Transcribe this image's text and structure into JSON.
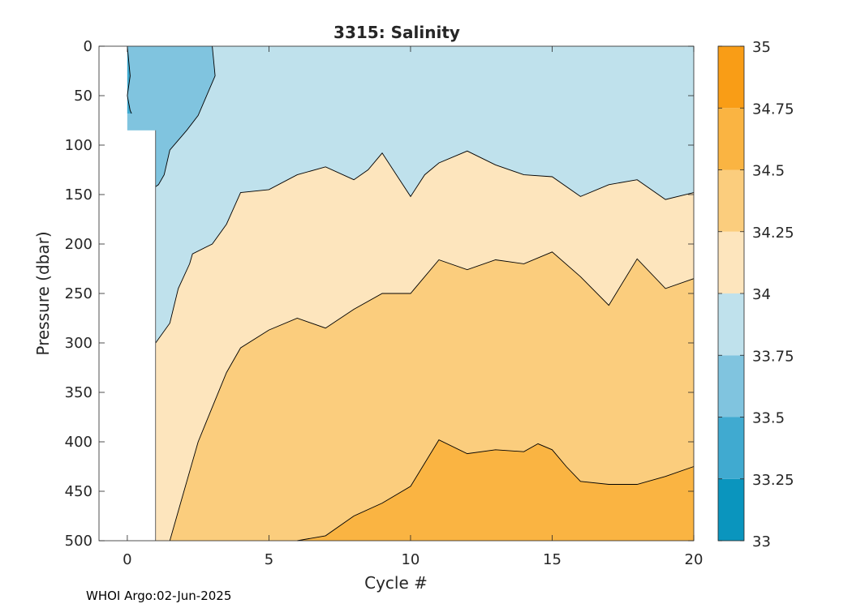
{
  "chart_data": {
    "type": "heatmap",
    "subtype": "filled-contour",
    "title": "3315:  Salinity",
    "xlabel": "Cycle #",
    "ylabel": "Pressure (dbar)",
    "xlim": [
      -1,
      20
    ],
    "ylim": [
      0,
      500
    ],
    "y_reversed": true,
    "x_ticks": [
      0,
      5,
      10,
      15,
      20
    ],
    "y_ticks": [
      0,
      50,
      100,
      150,
      200,
      250,
      300,
      350,
      400,
      450,
      500
    ],
    "grid": false,
    "colorbar": {
      "ticks": [
        33,
        33.25,
        33.5,
        33.75,
        34,
        34.25,
        34.5,
        34.75,
        35
      ],
      "levels": [
        33,
        33.25,
        33.5,
        33.75,
        34,
        34.25,
        34.5,
        34.75,
        35
      ],
      "colors": [
        "#0a95be",
        "#40aad0",
        "#80c4df",
        "#bfe1ec",
        "#fde5bd",
        "#fbcd7d",
        "#fab442",
        "#f99d16"
      ]
    },
    "data_extent": {
      "first_profile_max_pressure": 85,
      "full_depth_starts_at_cycle": 1
    },
    "contours": [
      {
        "level": 33.5,
        "points": [
          [
            0,
            0
          ],
          [
            0.1,
            30
          ],
          [
            0,
            50
          ],
          [
            0.1,
            65
          ],
          [
            0.15,
            68
          ]
        ]
      },
      {
        "level": 33.75,
        "points": [
          [
            3,
            0
          ],
          [
            3.1,
            30
          ],
          [
            2.5,
            70
          ],
          [
            2.1,
            85
          ],
          [
            1.5,
            105
          ],
          [
            1.3,
            130
          ],
          [
            1.1,
            140
          ],
          [
            1,
            142
          ]
        ]
      },
      {
        "level": 34,
        "points": [
          [
            1,
            300
          ],
          [
            1.5,
            280
          ],
          [
            1.8,
            245
          ],
          [
            2.2,
            220
          ],
          [
            2.3,
            210
          ],
          [
            3,
            200
          ],
          [
            3.5,
            180
          ],
          [
            4,
            148
          ],
          [
            5,
            145
          ],
          [
            6,
            130
          ],
          [
            7,
            122
          ],
          [
            8,
            135
          ],
          [
            8.5,
            125
          ],
          [
            9,
            108
          ],
          [
            9.5,
            130
          ],
          [
            10,
            152
          ],
          [
            10.5,
            130
          ],
          [
            11,
            118
          ],
          [
            12,
            106
          ],
          [
            13,
            120
          ],
          [
            14,
            130
          ],
          [
            15,
            132
          ],
          [
            16,
            152
          ],
          [
            17,
            140
          ],
          [
            18,
            135
          ],
          [
            19,
            155
          ],
          [
            20,
            148
          ]
        ]
      },
      {
        "level": 34.25,
        "points": [
          [
            1.5,
            500
          ],
          [
            2,
            450
          ],
          [
            2.5,
            400
          ],
          [
            3,
            365
          ],
          [
            3.5,
            330
          ],
          [
            4,
            305
          ],
          [
            5,
            287
          ],
          [
            6,
            275
          ],
          [
            7,
            285
          ],
          [
            8,
            266
          ],
          [
            9,
            250
          ],
          [
            10,
            250
          ],
          [
            11,
            216
          ],
          [
            12,
            226
          ],
          [
            13,
            216
          ],
          [
            14,
            220
          ],
          [
            15,
            208
          ],
          [
            16,
            233
          ],
          [
            17,
            262
          ],
          [
            18,
            215
          ],
          [
            19,
            245
          ],
          [
            20,
            235
          ]
        ]
      },
      {
        "level": 34.5,
        "points": [
          [
            6,
            500
          ],
          [
            7,
            495
          ],
          [
            8,
            475
          ],
          [
            9,
            462
          ],
          [
            10,
            445
          ],
          [
            11,
            398
          ],
          [
            12,
            412
          ],
          [
            13,
            408
          ],
          [
            14,
            410
          ],
          [
            14.5,
            402
          ],
          [
            15,
            408
          ],
          [
            15.5,
            425
          ],
          [
            16,
            440
          ],
          [
            17,
            443
          ],
          [
            18,
            443
          ],
          [
            19,
            435
          ],
          [
            20,
            425
          ]
        ]
      }
    ]
  },
  "footer": {
    "source": "WHOI Argo:02-Jun-2025"
  }
}
